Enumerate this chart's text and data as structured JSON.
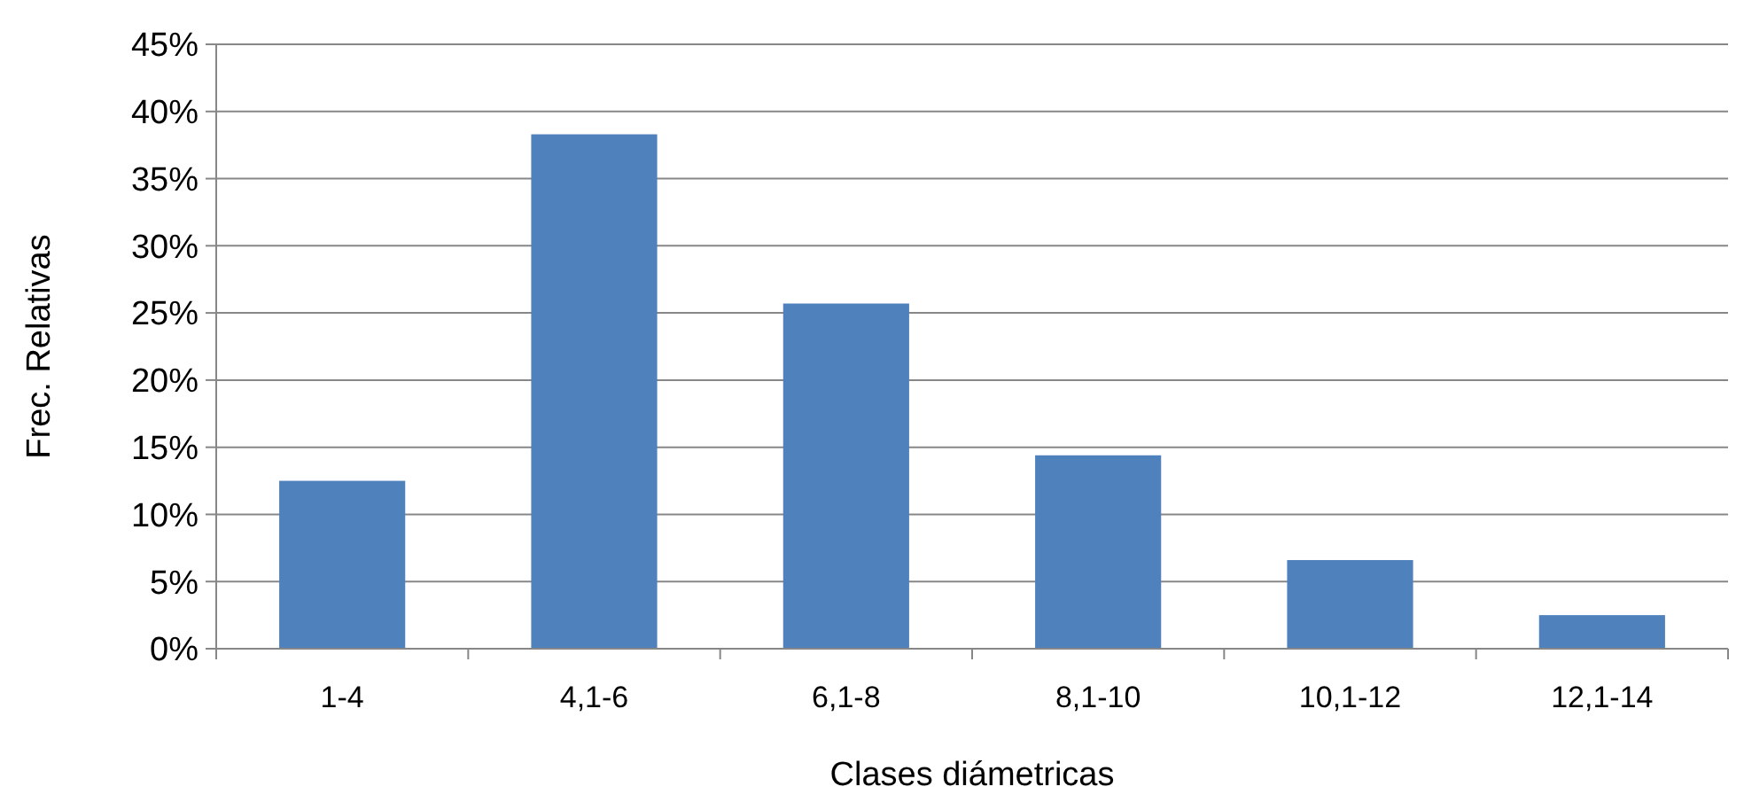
{
  "chart_data": {
    "type": "bar",
    "xlabel": "Clases diámetricas",
    "ylabel": "Frec. Relativas",
    "categories": [
      "1-4",
      "4,1-6",
      "6,1-8",
      "8,1-10",
      "10,1-12",
      "12,1-14"
    ],
    "values": [
      12.5,
      38.3,
      25.7,
      14.4,
      6.6,
      2.5
    ],
    "color": "#4f81bd",
    "ylim": [
      0,
      45
    ],
    "yticks": [
      {
        "value": 0,
        "label": "0%"
      },
      {
        "value": 5,
        "label": "5%"
      },
      {
        "value": 10,
        "label": "10%"
      },
      {
        "value": 15,
        "label": "15%"
      },
      {
        "value": 20,
        "label": "20%"
      },
      {
        "value": 25,
        "label": "25%"
      },
      {
        "value": 30,
        "label": "30%"
      },
      {
        "value": 35,
        "label": "35%"
      },
      {
        "value": 40,
        "label": "40%"
      },
      {
        "value": 45,
        "label": "45%"
      }
    ],
    "grid": "y"
  }
}
